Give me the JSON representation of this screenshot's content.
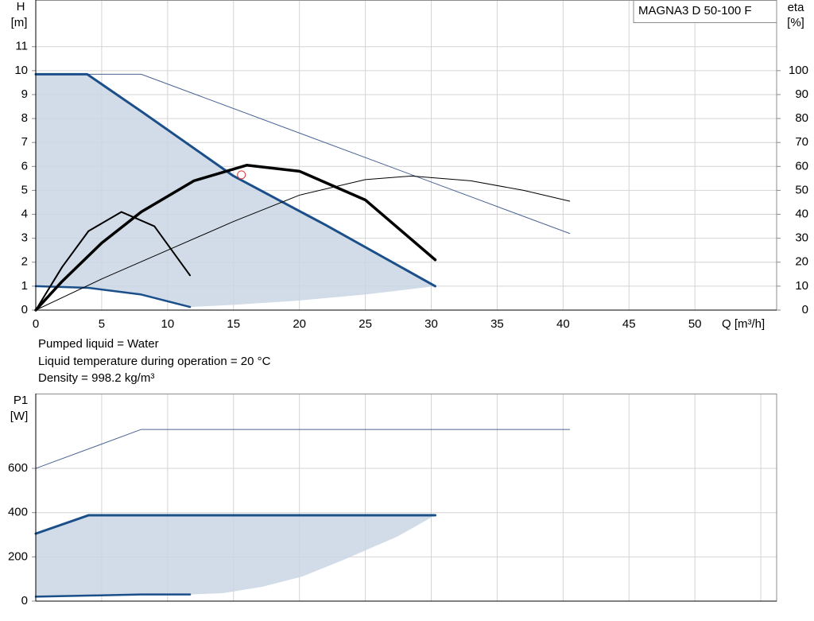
{
  "chart_data": [
    {
      "type": "line",
      "ylabel": "H",
      "yunit": "[m]",
      "y2label": "eta",
      "y2unit": "[%]",
      "xlabel": "Q [m³/h]",
      "legend_box": "MAGNA3 D 50-100 F",
      "xlim": [
        0,
        56.2
      ],
      "xticks": [
        0,
        5,
        10,
        15,
        20,
        25,
        30,
        35,
        40,
        45,
        50
      ],
      "ylim": [
        0,
        12.95
      ],
      "yticks": [
        0,
        1,
        2,
        3,
        4,
        5,
        6,
        7,
        8,
        9,
        10,
        11
      ],
      "y2lim": [
        0,
        129.5
      ],
      "y2ticks": [
        0,
        10,
        20,
        30,
        40,
        50,
        60,
        70,
        80,
        90,
        100
      ],
      "grid": true,
      "area": {
        "color": "#c9d6e4",
        "x_upper": [
          0,
          3.9,
          8,
          15,
          22,
          30.3
        ],
        "upper": [
          9.85,
          9.85,
          8.3,
          5.6,
          3.55,
          1.0
        ],
        "x_lower": [
          0,
          4,
          8,
          11.7,
          15,
          20,
          25,
          30.3
        ],
        "lower": [
          1.0,
          0.93,
          0.65,
          0.13,
          0.22,
          0.4,
          0.65,
          1.0
        ]
      },
      "series": [
        {
          "color": "#4a6594",
          "width": 1,
          "x": [
            0,
            8,
            40.5
          ],
          "values": [
            9.85,
            9.85,
            3.2
          ]
        },
        {
          "color": "#1b4f8a",
          "width": 3,
          "x": [
            0,
            3.9,
            8,
            15,
            22,
            30.3
          ],
          "values": [
            9.85,
            9.85,
            8.3,
            5.6,
            3.55,
            1.0
          ]
        },
        {
          "color": "#1b4f8a",
          "width": 2.5,
          "x": [
            0,
            4,
            8,
            11.7
          ],
          "values": [
            1.0,
            0.93,
            0.65,
            0.13
          ]
        },
        {
          "color": "#000000",
          "width": 1,
          "axis": "y2",
          "x": [
            0,
            5,
            10,
            15,
            20,
            25,
            28.5,
            33,
            37,
            40.5
          ],
          "values": [
            0,
            13,
            25,
            37,
            48,
            54.5,
            56,
            54,
            50,
            45.5
          ]
        },
        {
          "color": "#000000",
          "width": 2,
          "axis": "y2",
          "x": [
            0,
            2,
            4,
            6.5,
            9,
            11.7
          ],
          "values": [
            0,
            18,
            33,
            41,
            35,
            14.5
          ]
        },
        {
          "color": "#000000",
          "width": 3.5,
          "axis": "y2",
          "x": [
            0,
            2,
            5,
            8,
            12,
            16,
            20,
            25,
            30.3
          ],
          "values": [
            0,
            12,
            28,
            41,
            54,
            60.5,
            58,
            46,
            21
          ]
        }
      ],
      "points": [
        {
          "x": 15.6,
          "y": 5.65,
          "color": "#e03a3a"
        }
      ]
    },
    {
      "type": "line",
      "ylabel": "P1",
      "yunit": "[W]",
      "xlim": [
        0,
        56.2
      ],
      "xticks": [
        0,
        5,
        10,
        15,
        20,
        25,
        30,
        35,
        40,
        45,
        50,
        55
      ],
      "ylim": [
        0,
        938
      ],
      "yticks": [
        0,
        200,
        400,
        600
      ],
      "grid": true,
      "area": {
        "color": "#c9d6e4",
        "x_upper": [
          0,
          4,
          30.3
        ],
        "upper": [
          305,
          388,
          388
        ],
        "x_lower": [
          0,
          4,
          8,
          11.7,
          14.2,
          17.2,
          20.2,
          23.2,
          27.4,
          30.3
        ],
        "lower": [
          20,
          25,
          30,
          30,
          36,
          65,
          111,
          183,
          291,
          388
        ]
      },
      "series": [
        {
          "color": "#4a6594",
          "width": 1,
          "x": [
            0,
            8,
            40.5
          ],
          "values": [
            600,
            776,
            776
          ]
        },
        {
          "color": "#1b4f8a",
          "width": 3,
          "x": [
            0,
            4,
            30.3
          ],
          "values": [
            305,
            388,
            388
          ]
        },
        {
          "color": "#1b4f8a",
          "width": 2.5,
          "x": [
            0,
            4,
            8,
            11.7
          ],
          "values": [
            20,
            25,
            30,
            30
          ]
        }
      ]
    }
  ],
  "notes": [
    "Pumped liquid = Water",
    "Liquid temperature during operation = 20 °C",
    "Density = 998.2 kg/m³"
  ]
}
